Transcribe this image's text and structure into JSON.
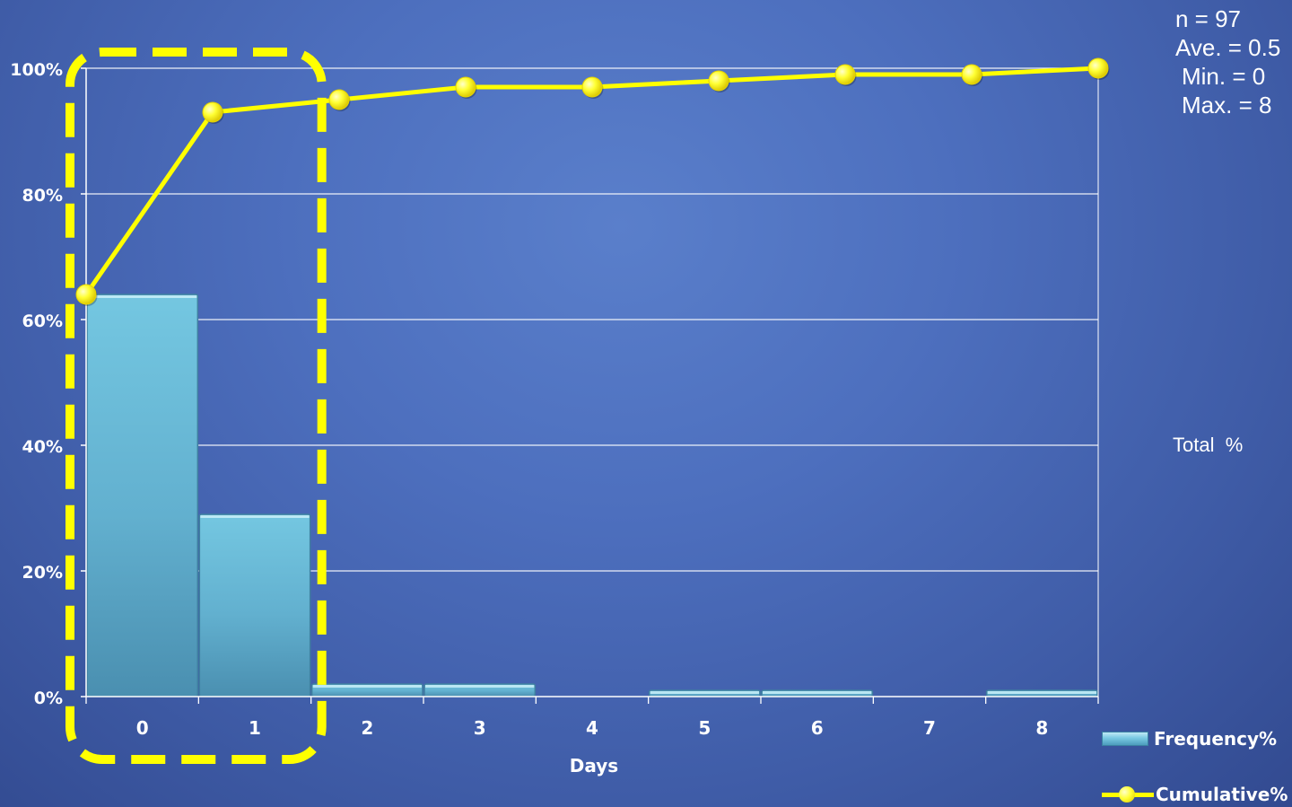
{
  "chart_data": {
    "type": "bar",
    "xlabel": "Days",
    "categories": [
      "0",
      "1",
      "2",
      "3",
      "4",
      "5",
      "6",
      "7",
      "8"
    ],
    "y_ticks": [
      "0%",
      "20%",
      "40%",
      "60%",
      "80%",
      "100%"
    ],
    "ylim": [
      0,
      100
    ],
    "grid": true,
    "series": [
      {
        "name": "Frequency%",
        "kind": "bar",
        "color": "#79c9e3",
        "values": [
          64,
          29,
          2,
          2,
          0,
          1,
          1,
          0,
          1
        ]
      },
      {
        "name": "Cumulative%",
        "kind": "line",
        "color": "#ffff00",
        "values": [
          64,
          93,
          95,
          97,
          97,
          98,
          99,
          99,
          100
        ]
      }
    ],
    "highlight": {
      "categories": [
        "0",
        "1"
      ],
      "style": "dashed-rounded-box",
      "color": "#ffff00"
    },
    "legend_position": "bottom-right"
  },
  "stats": {
    "n": "n = 97",
    "ave": "Ave. = 0.5",
    "min": "Min. = 0",
    "max": "Max. = 8"
  },
  "side_label": "Total  %"
}
